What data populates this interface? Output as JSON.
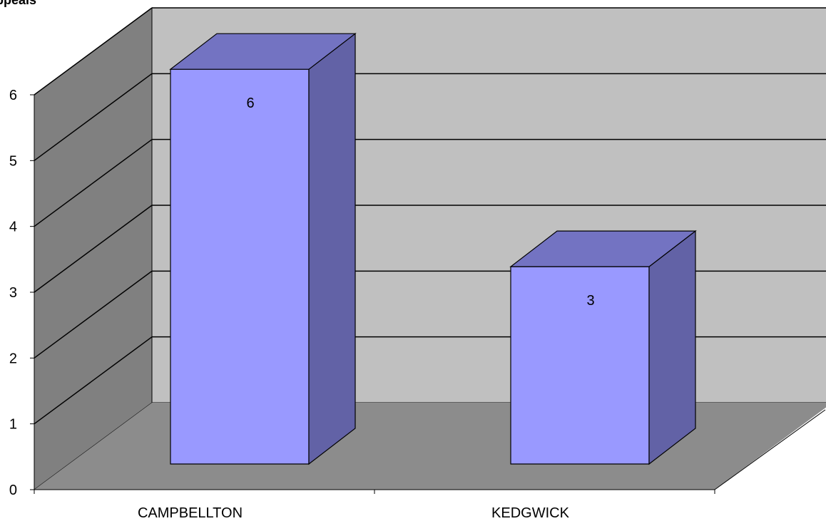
{
  "chart_data": {
    "type": "bar",
    "style": "3d-column",
    "title": "ppeals",
    "categories": [
      "CAMPBELLTON",
      "KEDGWICK"
    ],
    "series": [
      {
        "values": [
          6,
          3
        ],
        "color": "#9999ff",
        "side_color": "#6262a6",
        "top_color": "#7373c2"
      }
    ],
    "data_labels": [
      "6",
      "3"
    ],
    "ylim": [
      0,
      6
    ],
    "yticks": [
      "0",
      "1",
      "2",
      "3",
      "4",
      "5",
      "6"
    ],
    "grid": true,
    "legend": "none",
    "colors": {
      "back_wall": "#c0c0c0",
      "side_wall": "#808080",
      "floor": "#8c8c8c",
      "gridline": "#000000"
    }
  }
}
